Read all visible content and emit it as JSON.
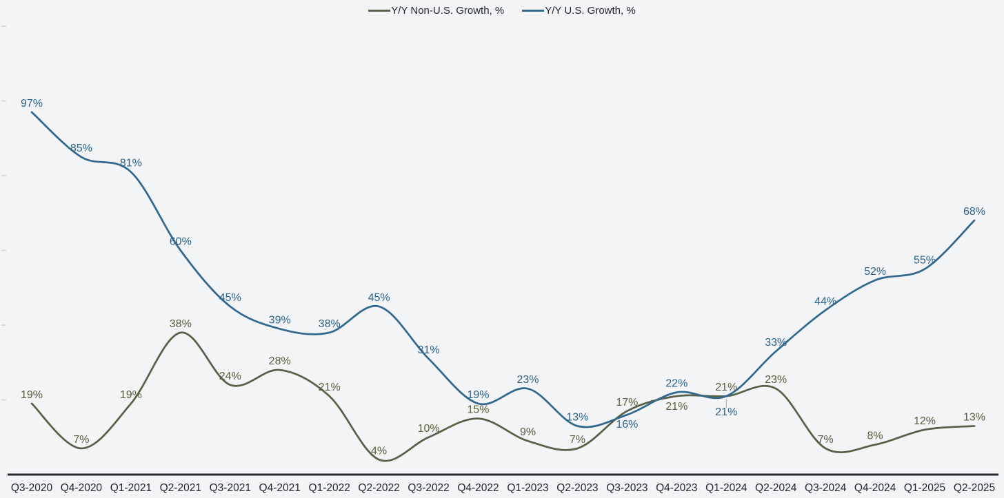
{
  "legend": {
    "items": [
      {
        "label": "Y/Y Non-U.S. Growth, %"
      },
      {
        "label": "Y/Y U.S. Growth, %"
      }
    ]
  },
  "chart_data": {
    "type": "line",
    "title": "",
    "xlabel": "",
    "ylabel": "",
    "categories": [
      "Q3-2020",
      "Q4-2020",
      "Q1-2021",
      "Q2-2021",
      "Q3-2021",
      "Q4-2021",
      "Q1-2022",
      "Q2-2022",
      "Q3-2022",
      "Q4-2022",
      "Q1-2023",
      "Q2-2023",
      "Q3-2023",
      "Q4-2023",
      "Q1-2024",
      "Q2-2024",
      "Q3-2024",
      "Q4-2024",
      "Q1-2025",
      "Q2-2025"
    ],
    "series": [
      {
        "name": "Y/Y Non-U.S. Growth, %",
        "color": "#57614a",
        "label_color": "#565f3e",
        "values": [
          19,
          7,
          19,
          38,
          24,
          28,
          21,
          4,
          10,
          15,
          9,
          7,
          17,
          21,
          21,
          23,
          7,
          8,
          12,
          13
        ],
        "label_offsets": {
          "13": [
            0,
            20
          ]
        }
      },
      {
        "name": "Y/Y U.S. Growth, %",
        "color": "#31688d",
        "label_color": "#2d6187",
        "values": [
          97,
          85,
          81,
          60,
          45,
          39,
          38,
          45,
          31,
          19,
          23,
          13,
          16,
          22,
          21,
          33,
          44,
          52,
          55,
          68
        ],
        "label_offsets": {
          "12": [
            0,
            19
          ],
          "14": [
            0,
            28
          ]
        },
        "leader_index": 14
      }
    ],
    "value_suffix": "%",
    "ylim": [
      0,
      130
    ],
    "yticks": [
      20,
      40,
      60,
      80,
      100,
      120
    ],
    "ytick_labels_visible": false,
    "grid": false,
    "legend_position": "top-center",
    "line_style": "smooth",
    "colors": {
      "background": "#f3f4f6",
      "axis": "#23272e",
      "tick": "#cfd2d6",
      "x_label": "#23272e",
      "legend_text": "#1d2129",
      "leader": "#a0a4aa"
    }
  }
}
